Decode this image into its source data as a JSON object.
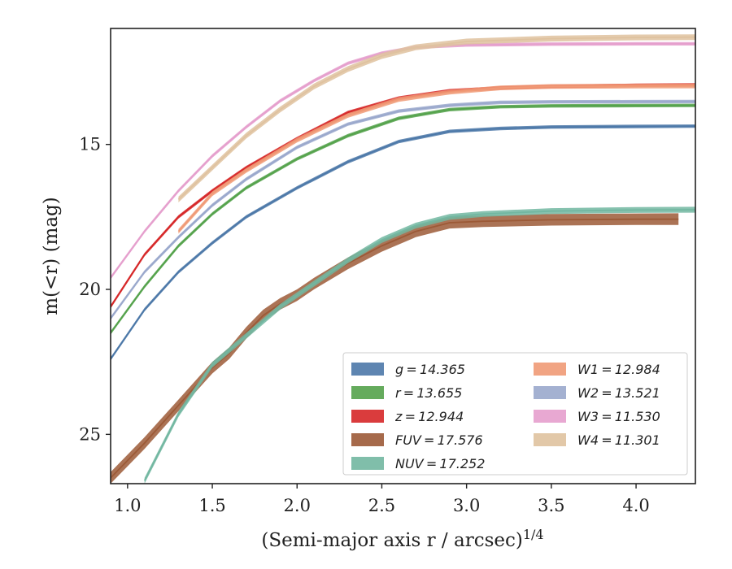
{
  "chart_data": {
    "type": "line",
    "xlabel": "(Semi-major axis r / arcsec)",
    "xlabel_sup": "1/4",
    "ylabel": "m(<r) (mag)",
    "xlim": [
      0.9,
      4.35
    ],
    "ylim": [
      26.7,
      11.0
    ],
    "y_inverted": true,
    "grid": false,
    "legend_position": "lower-right",
    "x_ticks": [
      "1.0",
      "1.5",
      "2.0",
      "2.5",
      "3.0",
      "3.5",
      "4.0"
    ],
    "y_ticks": [
      "15",
      "20",
      "25"
    ],
    "series": [
      {
        "name": "g = 14.365",
        "legend_text": "g = 14.365",
        "color": "#4c78a8",
        "band": 0.06,
        "x": [
          0.9,
          1.1,
          1.3,
          1.5,
          1.7,
          2.0,
          2.3,
          2.6,
          2.9,
          3.2,
          3.5,
          4.0,
          4.35
        ],
        "y": [
          22.4,
          20.7,
          19.4,
          18.4,
          17.5,
          16.5,
          15.6,
          14.9,
          14.55,
          14.45,
          14.4,
          14.38,
          14.37
        ]
      },
      {
        "name": "r = 13.655",
        "legend_text": "r = 13.655",
        "color": "#54a24b",
        "band": 0.06,
        "x": [
          0.9,
          1.1,
          1.3,
          1.5,
          1.7,
          2.0,
          2.3,
          2.6,
          2.9,
          3.2,
          3.5,
          4.0,
          4.35
        ],
        "y": [
          21.5,
          19.9,
          18.5,
          17.4,
          16.5,
          15.5,
          14.7,
          14.1,
          13.8,
          13.7,
          13.67,
          13.66,
          13.655
        ]
      },
      {
        "name": "z = 12.944",
        "legend_text": "z = 12.944",
        "color": "#d62728",
        "band": 0.06,
        "x": [
          0.9,
          1.1,
          1.3,
          1.5,
          1.7,
          2.0,
          2.3,
          2.6,
          2.9,
          3.2,
          3.5,
          4.0,
          4.35
        ],
        "y": [
          20.6,
          18.8,
          17.5,
          16.6,
          15.8,
          14.8,
          13.9,
          13.4,
          13.15,
          13.05,
          13.0,
          12.96,
          12.944
        ]
      },
      {
        "name": "FUV = 17.576",
        "legend_text": "FUV = 17.576",
        "color": "#9c5a37",
        "band": 0.2,
        "x": [
          0.9,
          1.1,
          1.3,
          1.5,
          1.6,
          1.7,
          1.8,
          1.9,
          2.0,
          2.1,
          2.3,
          2.5,
          2.7,
          2.9,
          3.1,
          3.5,
          4.0,
          4.25
        ],
        "y": [
          26.5,
          25.3,
          24.0,
          22.7,
          22.2,
          21.5,
          20.9,
          20.5,
          20.2,
          19.8,
          19.1,
          18.5,
          18.0,
          17.7,
          17.65,
          17.6,
          17.58,
          17.576
        ]
      },
      {
        "name": "NUV = 17.252",
        "legend_text": "NUV = 17.252",
        "color": "#72b7a1",
        "band": 0.1,
        "x": [
          1.1,
          1.3,
          1.5,
          1.7,
          1.9,
          2.1,
          2.3,
          2.5,
          2.7,
          2.9,
          3.1,
          3.5,
          4.0,
          4.35
        ],
        "y": [
          26.6,
          24.3,
          22.6,
          21.6,
          20.6,
          19.8,
          19.0,
          18.3,
          17.8,
          17.5,
          17.4,
          17.3,
          17.26,
          17.252
        ]
      },
      {
        "name": "W1 = 12.984",
        "legend_text": "W1 = 12.984",
        "color": "#f09a76",
        "band": 0.08,
        "x": [
          1.3,
          1.5,
          1.7,
          2.0,
          2.3,
          2.6,
          2.9,
          3.2,
          3.5,
          4.0,
          4.35
        ],
        "y": [
          18.0,
          16.7,
          15.9,
          14.85,
          14.0,
          13.45,
          13.2,
          13.05,
          13.0,
          12.99,
          12.984
        ]
      },
      {
        "name": "W2 = 13.521",
        "legend_text": "W2 = 13.521",
        "color": "#9aa8cc",
        "band": 0.06,
        "x": [
          0.9,
          1.1,
          1.3,
          1.5,
          1.7,
          2.0,
          2.3,
          2.6,
          2.9,
          3.2,
          3.5,
          4.0,
          4.35
        ],
        "y": [
          21.0,
          19.4,
          18.2,
          17.1,
          16.2,
          15.1,
          14.3,
          13.85,
          13.65,
          13.55,
          13.53,
          13.525,
          13.521
        ]
      },
      {
        "name": "W3 = 11.530",
        "legend_text": "W3 = 11.530",
        "color": "#e59fcd",
        "band": 0.06,
        "x": [
          0.9,
          1.1,
          1.3,
          1.5,
          1.7,
          1.9,
          2.1,
          2.3,
          2.5,
          2.7,
          3.0,
          3.5,
          4.0,
          4.35
        ],
        "y": [
          19.6,
          18.0,
          16.6,
          15.4,
          14.4,
          13.5,
          12.8,
          12.2,
          11.85,
          11.65,
          11.57,
          11.54,
          11.53,
          11.53
        ]
      },
      {
        "name": "W4 = 11.301",
        "legend_text": "W4 = 11.301",
        "color": "#dfc29f",
        "band": 0.1,
        "x": [
          1.3,
          1.5,
          1.7,
          1.9,
          2.1,
          2.3,
          2.5,
          2.7,
          3.0,
          3.5,
          4.0,
          4.35
        ],
        "y": [
          16.9,
          15.8,
          14.7,
          13.8,
          13.0,
          12.4,
          11.95,
          11.65,
          11.45,
          11.35,
          11.31,
          11.301
        ]
      }
    ]
  }
}
